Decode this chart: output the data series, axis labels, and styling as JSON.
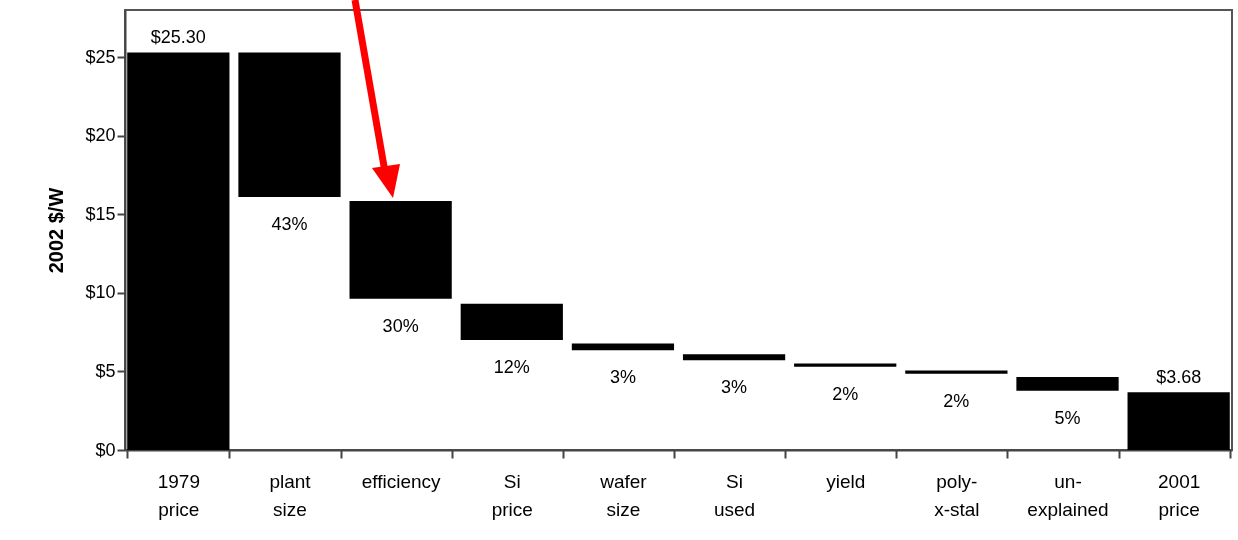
{
  "chart_data": {
    "type": "bar",
    "ylabel": "2002 $/W",
    "categories": [
      "1979\nprice",
      "plant\nsize",
      "efficiency",
      "Si\nprice",
      "wafer\nsize",
      "Si\nused",
      "yield",
      "poly-\nx-stal",
      "un-\nexplained",
      "2001\nprice"
    ],
    "base": [
      0,
      25.3,
      15.84,
      9.3,
      6.78,
      6.1,
      5.5,
      5.06,
      4.65,
      0
    ],
    "values": [
      25.3,
      -9.2,
      -6.21,
      -2.3,
      -0.43,
      -0.39,
      -0.21,
      -0.21,
      -0.88,
      3.68
    ],
    "value_labels": [
      "$25.30",
      null,
      null,
      null,
      null,
      null,
      null,
      null,
      null,
      "$3.68"
    ],
    "annotations": [
      {
        "text": "43%",
        "x": "plant\nsize",
        "y": 16.1
      },
      {
        "text": "30%",
        "x": "efficiency",
        "y": 9.63
      },
      {
        "text": "12%",
        "x": "Si\nprice",
        "y": 7.0
      },
      {
        "text": "3%",
        "x": "wafer\nsize",
        "y": 6.35
      },
      {
        "text": "3%",
        "x": "Si\nused",
        "y": 5.71
      },
      {
        "text": "2%",
        "x": "yield",
        "y": 5.29
      },
      {
        "text": "2%",
        "x": "poly-\nx-stal",
        "y": 4.85
      },
      {
        "text": "5%",
        "x": "un-\nexplained",
        "y": 3.77
      }
    ],
    "color": "#000000",
    "ylim": [
      0,
      28
    ],
    "yticks": [
      {
        "value": 0,
        "label": "$0"
      },
      {
        "value": 5,
        "label": "$5"
      },
      {
        "value": 10,
        "label": "$10"
      },
      {
        "value": 15,
        "label": "$15"
      },
      {
        "value": 20,
        "label": "$20"
      },
      {
        "value": 25,
        "label": "$25"
      }
    ],
    "grid": false
  }
}
